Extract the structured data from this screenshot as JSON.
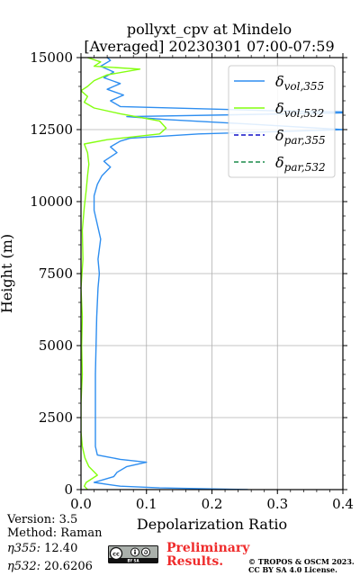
{
  "header": {
    "title_line1": "pollyxt_cpv at Mindelo",
    "title_line2": "[Averaged] 20230301 07:00-07:59"
  },
  "footer": {
    "version": "Version: 3.5",
    "method": "Method: Raman",
    "eta355_label": "η355:",
    "eta355_value": "12.40",
    "eta532_label": "η532:",
    "eta532_value": "20.6206",
    "preliminary_line1": "Preliminary",
    "preliminary_line2": "Results.",
    "copyright_line1": "© TROPOS & OSCM 2023.",
    "copyright_line2": "CC BY SA 4.0 License.",
    "license_logo_text": "cc by sa"
  },
  "colors": {
    "vol355": "#2e8ef0",
    "vol532": "#84ff0f",
    "par355": "#1010c8",
    "par532": "#1a8a4a",
    "preliminary": "#ef2b2b"
  },
  "chart_data": {
    "type": "line",
    "xlabel": "Depolarization Ratio",
    "ylabel": "Height (m)",
    "xlim": [
      0,
      0.4
    ],
    "ylim": [
      0,
      15000
    ],
    "x_ticks": [
      "0.0",
      "0.1",
      "0.2",
      "0.3",
      "0.4"
    ],
    "y_ticks": [
      "0",
      "2500",
      "5000",
      "7500",
      "10000",
      "12500",
      "15000"
    ],
    "grid": true,
    "legend_position": "top-right",
    "series": [
      {
        "name": "δvol,355",
        "legend_base": "δ",
        "legend_sub": "vol,355",
        "style": "solid",
        "color_key": "vol355",
        "points": [
          [
            0.255,
            0
          ],
          [
            0.12,
            60
          ],
          [
            0.06,
            120
          ],
          [
            0.04,
            180
          ],
          [
            0.02,
            250
          ],
          [
            0.035,
            350
          ],
          [
            0.05,
            450
          ],
          [
            0.055,
            600
          ],
          [
            0.07,
            800
          ],
          [
            0.1,
            950
          ],
          [
            0.06,
            1050
          ],
          [
            0.025,
            1200
          ],
          [
            0.022,
            1500
          ],
          [
            0.022,
            2000
          ],
          [
            0.022,
            3000
          ],
          [
            0.022,
            4000
          ],
          [
            0.023,
            5000
          ],
          [
            0.024,
            6000
          ],
          [
            0.026,
            7000
          ],
          [
            0.028,
            7500
          ],
          [
            0.026,
            8000
          ],
          [
            0.03,
            8700
          ],
          [
            0.025,
            9200
          ],
          [
            0.02,
            9700
          ],
          [
            0.02,
            10200
          ],
          [
            0.025,
            10600
          ],
          [
            0.032,
            10900
          ],
          [
            0.045,
            11200
          ],
          [
            0.035,
            11400
          ],
          [
            0.055,
            11700
          ],
          [
            0.045,
            11900
          ],
          [
            0.06,
            12100
          ],
          [
            0.075,
            12200
          ],
          [
            0.18,
            12350
          ],
          [
            0.4,
            12500
          ],
          [
            0.25,
            12700
          ],
          [
            0.13,
            12850
          ],
          [
            0.07,
            12950
          ],
          [
            0.45,
            13100
          ],
          [
            0.3,
            13150
          ],
          [
            0.06,
            13300
          ],
          [
            0.045,
            13500
          ],
          [
            0.065,
            13700
          ],
          [
            0.04,
            13900
          ],
          [
            0.06,
            14100
          ],
          [
            0.035,
            14300
          ],
          [
            0.05,
            14500
          ],
          [
            0.03,
            14700
          ],
          [
            0.045,
            14900
          ],
          [
            0.04,
            15000
          ]
        ]
      },
      {
        "name": "δvol,532",
        "legend_base": "δ",
        "legend_sub": "vol,532",
        "style": "solid",
        "color_key": "vol532",
        "points": [
          [
            0.01,
            0
          ],
          [
            0.005,
            120
          ],
          [
            0.008,
            250
          ],
          [
            0.025,
            500
          ],
          [
            0.012,
            800
          ],
          [
            0.006,
            1100
          ],
          [
            0.002,
            1500
          ],
          [
            0.0,
            2000
          ],
          [
            0.0,
            3000
          ],
          [
            0.002,
            4000
          ],
          [
            0.001,
            5000
          ],
          [
            0.002,
            6000
          ],
          [
            0.0,
            7000
          ],
          [
            0.003,
            8000
          ],
          [
            0.002,
            9000
          ],
          [
            0.005,
            9800
          ],
          [
            0.008,
            10400
          ],
          [
            0.01,
            10900
          ],
          [
            0.012,
            11300
          ],
          [
            0.01,
            11700
          ],
          [
            0.005,
            12000
          ],
          [
            0.04,
            12150
          ],
          [
            0.12,
            12350
          ],
          [
            0.13,
            12550
          ],
          [
            0.12,
            12800
          ],
          [
            0.06,
            13050
          ],
          [
            0.02,
            13250
          ],
          [
            0.005,
            13450
          ],
          [
            0.01,
            13650
          ],
          [
            0.0,
            13850
          ],
          [
            0.01,
            14000
          ],
          [
            0.02,
            14200
          ],
          [
            0.04,
            14400
          ],
          [
            0.09,
            14600
          ],
          [
            0.02,
            14700
          ],
          [
            0.03,
            14850
          ],
          [
            0.01,
            15000
          ]
        ]
      },
      {
        "name": "δpar,355",
        "legend_base": "δ",
        "legend_sub": "par,355",
        "style": "dashed",
        "color_key": "par355",
        "points": []
      },
      {
        "name": "δpar,532",
        "legend_base": "δ",
        "legend_sub": "par,532",
        "style": "dashed",
        "color_key": "par532",
        "points": []
      }
    ]
  }
}
